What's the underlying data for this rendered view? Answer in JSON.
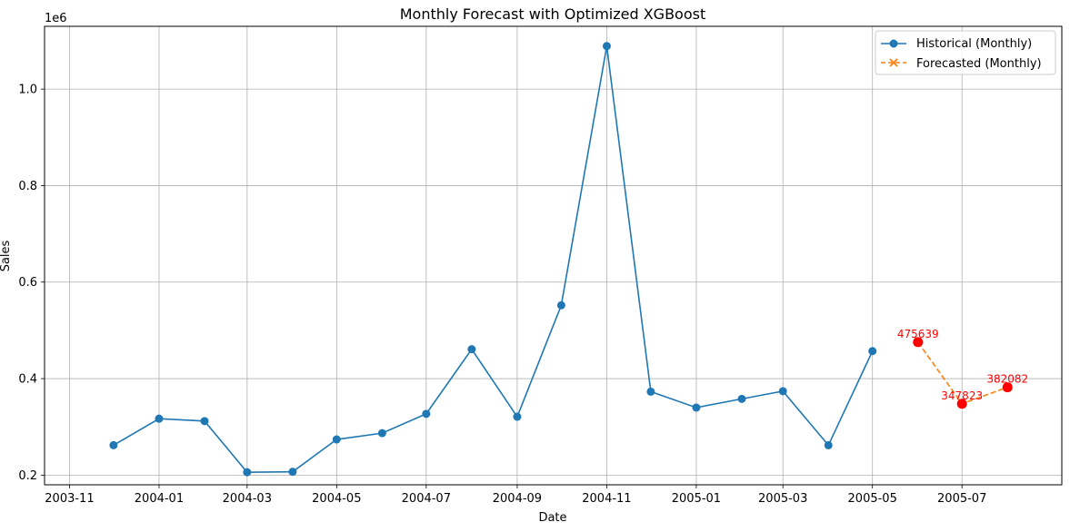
{
  "chart_data": {
    "type": "line",
    "title": "Monthly Forecast with Optimized XGBoost",
    "xlabel": "Date",
    "ylabel": "Sales",
    "y_multiplier_label": "1e6",
    "xlim": [
      "2003-10-15",
      "2005-09-07"
    ],
    "ylim": [
      180000,
      1130000
    ],
    "grid": true,
    "legend_position": "top-right",
    "x_ticks": [
      "2003-11",
      "2004-01",
      "2004-03",
      "2004-05",
      "2004-07",
      "2004-09",
      "2004-11",
      "2005-01",
      "2005-03",
      "2005-05",
      "2005-07"
    ],
    "y_ticks": [
      {
        "value": 200000,
        "label": "0.2"
      },
      {
        "value": 400000,
        "label": "0.4"
      },
      {
        "value": 600000,
        "label": "0.6"
      },
      {
        "value": 800000,
        "label": "0.8"
      },
      {
        "value": 1000000,
        "label": "1.0"
      }
    ],
    "series": [
      {
        "name": "Historical (Monthly)",
        "style": "solid",
        "marker": "circle",
        "color": "#1f77b4",
        "x": [
          "2003-12-01",
          "2004-01-01",
          "2004-02-01",
          "2004-03-01",
          "2004-04-01",
          "2004-05-01",
          "2004-06-01",
          "2004-07-01",
          "2004-08-01",
          "2004-09-01",
          "2004-10-01",
          "2004-11-01",
          "2004-12-01",
          "2005-01-01",
          "2005-02-01",
          "2005-03-01",
          "2005-04-01",
          "2005-05-01"
        ],
        "values": [
          262000,
          317000,
          312000,
          206000,
          207000,
          274000,
          287000,
          327000,
          461000,
          321000,
          552000,
          1089000,
          373000,
          340000,
          358000,
          374000,
          262000,
          457000
        ]
      },
      {
        "name": "Forecasted (Monthly)",
        "style": "dashed",
        "marker": "x",
        "color": "#ff7f0e",
        "x": [
          "2005-06-01",
          "2005-07-01",
          "2005-08-01"
        ],
        "values": [
          475639,
          347823,
          382082
        ]
      }
    ],
    "annotations": {
      "color": "#ff0000",
      "labels": [
        "475639",
        "347823",
        "382082"
      ]
    }
  }
}
